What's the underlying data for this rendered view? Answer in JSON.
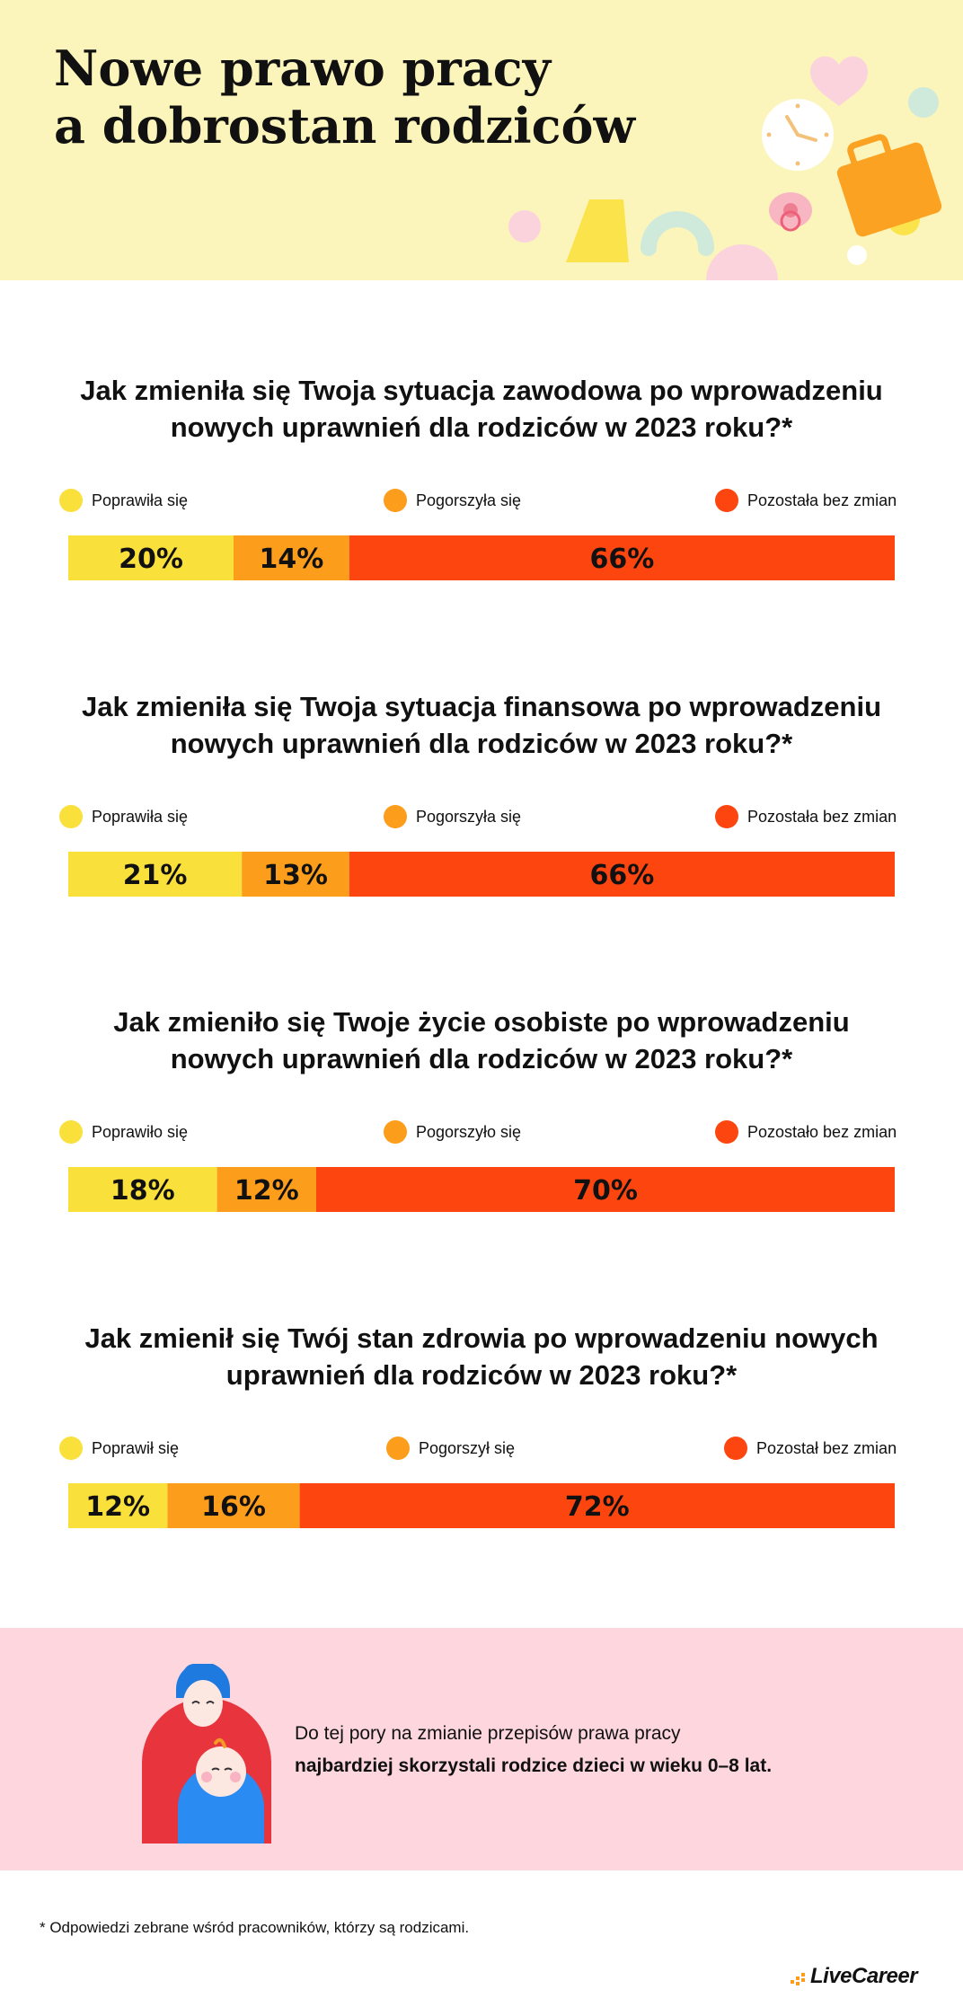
{
  "header": {
    "title_line1": "Nowe prawo pracy",
    "title_line2": "a dobrostan rodziców",
    "background": "#fcf5bb"
  },
  "colors": {
    "improved": "#f9e03a",
    "worsened": "#fc9d1c",
    "unchanged": "#fd4510"
  },
  "chart_data": [
    {
      "type": "bar",
      "orientation": "horizontal-stacked-100",
      "title_line1": "Jak zmieniła się Twoja sytuacja zawodowa po wprowadzeniu",
      "title_line2": "nowych uprawnień dla rodziców w 2023 roku?*",
      "legend": [
        "Poprawiła się",
        "Pogorszyła się",
        "Pozostała bez zmian"
      ],
      "values": [
        20,
        14,
        66
      ],
      "labels": [
        "20%",
        "14%",
        "66%"
      ]
    },
    {
      "type": "bar",
      "orientation": "horizontal-stacked-100",
      "title_line1": "Jak zmieniła się Twoja sytuacja finansowa po wprowadzeniu",
      "title_line2": "nowych uprawnień dla rodziców w 2023 roku?*",
      "legend": [
        "Poprawiła się",
        "Pogorszyła się",
        "Pozostała bez zmian"
      ],
      "values": [
        21,
        13,
        66
      ],
      "labels": [
        "21%",
        "13%",
        "66%"
      ]
    },
    {
      "type": "bar",
      "orientation": "horizontal-stacked-100",
      "title_line1": "Jak zmieniło się Twoje życie osobiste po wprowadzeniu",
      "title_line2": "nowych uprawnień dla rodziców w 2023 roku?*",
      "legend": [
        "Poprawiło się",
        "Pogorszyło się",
        "Pozostało bez zmian"
      ],
      "values": [
        18,
        12,
        70
      ],
      "labels": [
        "18%",
        "12%",
        "70%"
      ]
    },
    {
      "type": "bar",
      "orientation": "horizontal-stacked-100",
      "title_line1": "Jak zmienił się Twój stan zdrowia po wprowadzeniu nowych",
      "title_line2": "uprawnień dla rodziców w 2023 roku?*",
      "legend": [
        "Poprawił się",
        "Pogorszył się",
        "Pozostał bez zmian"
      ],
      "values": [
        12,
        16,
        72
      ],
      "labels": [
        "12%",
        "16%",
        "72%"
      ]
    }
  ],
  "note": {
    "line1": "Do tej pory na zmianie przepisów prawa pracy",
    "line2": "najbardziej skorzystali rodzice dzieci w wieku 0–8 lat.",
    "background": "#fdd6de"
  },
  "footnote": "* Odpowiedzi zebrane wśród pracowników, którzy są rodzicami.",
  "brand": {
    "name": "LiveCareer",
    "icon": "livecareer-logo-icon",
    "color": "#fc9d1c"
  }
}
